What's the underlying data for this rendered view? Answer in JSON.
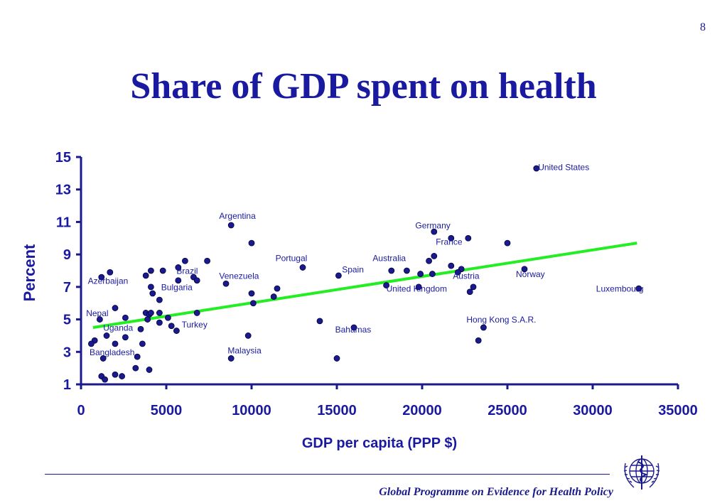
{
  "slide": {
    "page_number": "8",
    "title": "Share of GDP spent on health",
    "footer": "Global Programme on Evidence for Health Policy"
  },
  "logo": {
    "icon": "who-emblem-icon"
  },
  "colors": {
    "text": "#1a1aa0",
    "axis": "#1a1a8c",
    "point": "#1a1a8c",
    "trend": "#22ee22"
  },
  "chart_data": {
    "type": "scatter",
    "title": "",
    "xlabel": "GDP per capita (PPP $)",
    "ylabel": "Percent",
    "xlim": [
      0,
      35000
    ],
    "ylim": [
      1,
      15
    ],
    "x_ticks": [
      "0",
      "5000",
      "10000",
      "15000",
      "20000",
      "25000",
      "30000",
      "35000"
    ],
    "y_ticks": [
      "1",
      "3",
      "5",
      "7",
      "9",
      "11",
      "13",
      "15"
    ],
    "grid": false,
    "trend_line": {
      "x": [
        700,
        32600
      ],
      "y": [
        4.5,
        9.7
      ]
    },
    "labels": [
      {
        "text": "United States",
        "x": 26800,
        "y": 14.2
      },
      {
        "text": "Argentina",
        "x": 8100,
        "y": 11.2
      },
      {
        "text": "Germany",
        "x": 19600,
        "y": 10.6
      },
      {
        "text": "France",
        "x": 20800,
        "y": 9.6
      },
      {
        "text": "Portugal",
        "x": 11400,
        "y": 8.6
      },
      {
        "text": "Australia",
        "x": 17100,
        "y": 8.6
      },
      {
        "text": "Spain",
        "x": 15300,
        "y": 7.9
      },
      {
        "text": "Brazil",
        "x": 5600,
        "y": 7.8
      },
      {
        "text": "Venezuela",
        "x": 8100,
        "y": 7.5
      },
      {
        "text": "Norway",
        "x": 25500,
        "y": 7.6
      },
      {
        "text": "Austria",
        "x": 21800,
        "y": 7.5
      },
      {
        "text": "Azerbaijan",
        "x": 400,
        "y": 7.2
      },
      {
        "text": "Bulgaria",
        "x": 4700,
        "y": 6.8
      },
      {
        "text": "United Kingdom",
        "x": 17900,
        "y": 6.7
      },
      {
        "text": "Luxembourg",
        "x": 30200,
        "y": 6.7
      },
      {
        "text": "Nepal",
        "x": 300,
        "y": 5.2
      },
      {
        "text": "Hong Kong S.A.R.",
        "x": 22600,
        "y": 4.8
      },
      {
        "text": "Turkey",
        "x": 5900,
        "y": 4.5
      },
      {
        "text": "Uganda",
        "x": 1300,
        "y": 4.3
      },
      {
        "text": "Bahamas",
        "x": 14900,
        "y": 4.2
      },
      {
        "text": "Malaysia",
        "x": 8600,
        "y": 2.9
      },
      {
        "text": "Bangladesh",
        "x": 500,
        "y": 2.8
      }
    ],
    "points": [
      [
        26700,
        14.3
      ],
      [
        8800,
        10.8
      ],
      [
        10000,
        9.7
      ],
      [
        20700,
        10.4
      ],
      [
        21700,
        10.0
      ],
      [
        22700,
        10.0
      ],
      [
        25000,
        9.7
      ],
      [
        20700,
        8.9
      ],
      [
        20400,
        8.6
      ],
      [
        21700,
        8.3
      ],
      [
        22300,
        8.1
      ],
      [
        26000,
        8.1
      ],
      [
        13000,
        8.2
      ],
      [
        18200,
        8.0
      ],
      [
        19100,
        8.0
      ],
      [
        19900,
        7.8
      ],
      [
        20600,
        7.8
      ],
      [
        22100,
        7.9
      ],
      [
        23000,
        7.0
      ],
      [
        22800,
        6.7
      ],
      [
        15100,
        7.7
      ],
      [
        17900,
        7.1
      ],
      [
        19800,
        7.0
      ],
      [
        32700,
        6.9
      ],
      [
        7400,
        8.6
      ],
      [
        6100,
        8.6
      ],
      [
        5700,
        8.2
      ],
      [
        4100,
        8.0
      ],
      [
        4800,
        8.0
      ],
      [
        3800,
        7.7
      ],
      [
        6600,
        7.6
      ],
      [
        6800,
        7.4
      ],
      [
        5700,
        7.4
      ],
      [
        8500,
        7.2
      ],
      [
        4100,
        7.0
      ],
      [
        4200,
        6.6
      ],
      [
        4600,
        6.2
      ],
      [
        10000,
        6.6
      ],
      [
        10100,
        6.0
      ],
      [
        11300,
        6.4
      ],
      [
        11500,
        6.9
      ],
      [
        1200,
        7.6
      ],
      [
        1700,
        7.9
      ],
      [
        2000,
        5.7
      ],
      [
        1100,
        5.0
      ],
      [
        2600,
        5.1
      ],
      [
        3800,
        5.4
      ],
      [
        4000,
        5.3
      ],
      [
        4100,
        5.4
      ],
      [
        4600,
        5.4
      ],
      [
        5100,
        5.1
      ],
      [
        3900,
        5.0
      ],
      [
        4600,
        4.8
      ],
      [
        5300,
        4.6
      ],
      [
        5600,
        4.3
      ],
      [
        6800,
        5.4
      ],
      [
        14000,
        4.9
      ],
      [
        16000,
        4.5
      ],
      [
        23600,
        4.5
      ],
      [
        23300,
        3.7
      ],
      [
        3500,
        4.4
      ],
      [
        2600,
        3.9
      ],
      [
        1500,
        4.0
      ],
      [
        800,
        3.7
      ],
      [
        600,
        3.5
      ],
      [
        2000,
        3.5
      ],
      [
        3600,
        3.5
      ],
      [
        9800,
        4.0
      ],
      [
        1300,
        2.6
      ],
      [
        3300,
        2.7
      ],
      [
        8800,
        2.6
      ],
      [
        15000,
        2.6
      ],
      [
        3200,
        2.0
      ],
      [
        4000,
        1.9
      ],
      [
        1200,
        1.5
      ],
      [
        1400,
        1.3
      ],
      [
        2000,
        1.6
      ],
      [
        2400,
        1.5
      ]
    ]
  }
}
